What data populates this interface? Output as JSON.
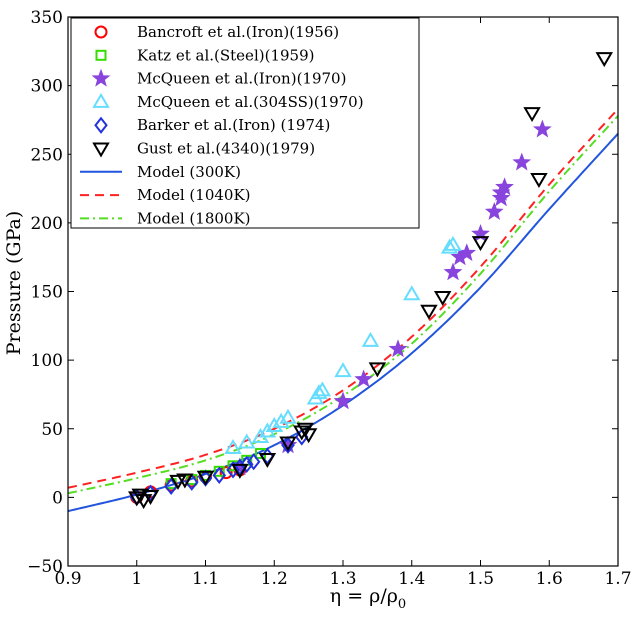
{
  "chart_data": {
    "type": "scatter",
    "title": "",
    "xlabel": "η = ρ/ρ",
    "xlabel_subscript": "0",
    "ylabel": "Pressure (GPa)",
    "xlim": [
      0.9,
      1.7
    ],
    "ylim": [
      -50,
      350
    ],
    "xticks": [
      0.9,
      1.0,
      1.1,
      1.2,
      1.3,
      1.4,
      1.5,
      1.6,
      1.7
    ],
    "xtick_labels": [
      "0.9",
      "1",
      "1.1",
      "1.2",
      "1.3",
      "1.4",
      "1.5",
      "1.6",
      "1.7"
    ],
    "yticks": [
      -50,
      0,
      50,
      100,
      150,
      200,
      250,
      300,
      350
    ],
    "ytick_labels": [
      "−50",
      "0",
      "50",
      "100",
      "150",
      "200",
      "250",
      "300",
      "350"
    ],
    "grid": false,
    "legend_position": "top-left",
    "series": [
      {
        "name": "Bancroft et al.(Iron)(1956)",
        "marker": "circle",
        "color": "#ff0000",
        "x": [
          1.0,
          1.02,
          1.05,
          1.08,
          1.1,
          1.13,
          1.15
        ],
        "y": [
          0,
          4,
          9,
          12,
          15,
          18,
          20
        ]
      },
      {
        "name": "Katz et al.(Steel)(1959)",
        "marker": "square",
        "color": "#33dd00",
        "x": [
          1.05,
          1.08,
          1.1,
          1.12,
          1.14,
          1.16,
          1.18
        ],
        "y": [
          10,
          13,
          16,
          19,
          23,
          27,
          32
        ]
      },
      {
        "name": "McQueen et al.(Iron)(1970)",
        "marker": "star",
        "color": "#8844dd",
        "x": [
          1.15,
          1.22,
          1.3,
          1.33,
          1.38,
          1.46,
          1.47,
          1.48,
          1.5,
          1.52,
          1.53,
          1.53,
          1.535,
          1.56,
          1.59
        ],
        "y": [
          22,
          38,
          70,
          86,
          108,
          164,
          175,
          178,
          192,
          208,
          218,
          222,
          226,
          244,
          268
        ]
      },
      {
        "name": "McQueen et al.(304SS)(1970)",
        "marker": "triangle-up",
        "color": "#66ddff",
        "x": [
          1.14,
          1.16,
          1.18,
          1.19,
          1.2,
          1.21,
          1.22,
          1.26,
          1.265,
          1.27,
          1.3,
          1.34,
          1.4,
          1.455,
          1.46
        ],
        "y": [
          36,
          40,
          44,
          48,
          52,
          55,
          58,
          72,
          76,
          78,
          92,
          114,
          148,
          182,
          184
        ]
      },
      {
        "name": "Barker et al.(Iron) (1974)",
        "marker": "diamond",
        "color": "#2233dd",
        "x": [
          1.0,
          1.02,
          1.05,
          1.08,
          1.1,
          1.12,
          1.14,
          1.15,
          1.16,
          1.17,
          1.19,
          1.22,
          1.24
        ],
        "y": [
          0,
          3,
          8,
          11,
          14,
          16,
          20,
          22,
          24,
          26,
          30,
          38,
          44
        ]
      },
      {
        "name": "Gust et al.(4340)(1979)",
        "marker": "triangle-down",
        "color": "#000000",
        "x": [
          1.0,
          1.005,
          1.01,
          1.02,
          1.06,
          1.07,
          1.1,
          1.15,
          1.19,
          1.22,
          1.24,
          1.245,
          1.25,
          1.35,
          1.425,
          1.445,
          1.5,
          1.575,
          1.585,
          1.68
        ],
        "y": [
          0,
          2,
          -2,
          1,
          12,
          13,
          15,
          20,
          28,
          40,
          48,
          50,
          46,
          94,
          136,
          146,
          186,
          280,
          232,
          320
        ]
      },
      {
        "name": "Model (300K)",
        "type": "line",
        "color": "#2255dd",
        "dash": "solid",
        "x": [
          0.9,
          1.0,
          1.1,
          1.2,
          1.3,
          1.4,
          1.5,
          1.6,
          1.7
        ],
        "y": [
          -10,
          2,
          17,
          38,
          67,
          105,
          153,
          210,
          265
        ]
      },
      {
        "name": "Model (1040K)",
        "type": "line",
        "color": "#ff2222",
        "dash": "dashed",
        "x": [
          0.9,
          1.0,
          1.1,
          1.2,
          1.3,
          1.4,
          1.5,
          1.6,
          1.7
        ],
        "y": [
          7,
          18,
          31,
          50,
          78,
          117,
          168,
          228,
          283
        ]
      },
      {
        "name": "Model (1800K)",
        "type": "line",
        "color": "#55dd22",
        "dash": "dashdot",
        "x": [
          0.9,
          1.0,
          1.1,
          1.2,
          1.3,
          1.4,
          1.5,
          1.6,
          1.7
        ],
        "y": [
          3,
          14,
          27,
          46,
          74,
          112,
          163,
          223,
          278
        ]
      }
    ]
  }
}
